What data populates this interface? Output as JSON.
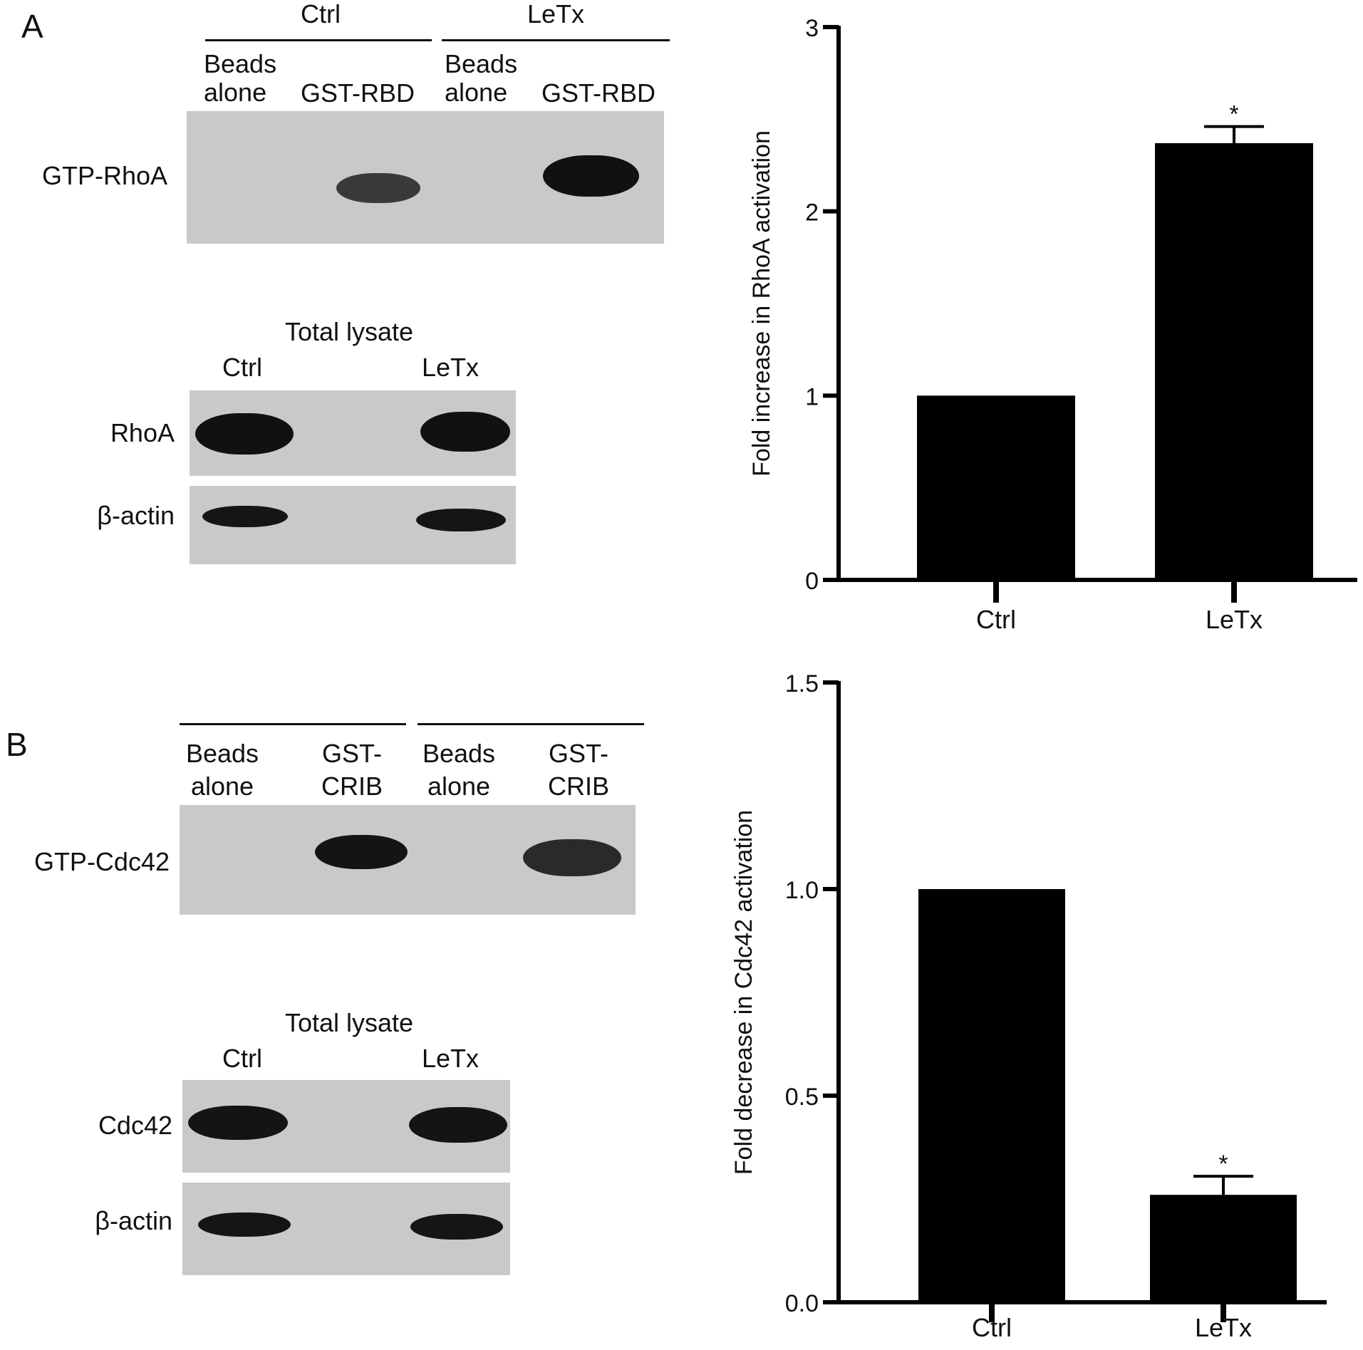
{
  "panel_a": {
    "letter": "A",
    "top_groups": [
      "Ctrl",
      "LeTx"
    ],
    "lanes": [
      {
        "line1": "Beads",
        "line2": "alone"
      },
      {
        "line1": "GST-RBD",
        "line2": ""
      },
      {
        "line1": "Beads",
        "line2": "alone"
      },
      {
        "line1": "GST-RBD",
        "line2": ""
      }
    ],
    "gtp_label": "GTP-RhoA",
    "total_lysate_title": "Total lysate",
    "lysate_groups": [
      "Ctrl",
      "LeTx"
    ],
    "lysate_rows": [
      "RhoA",
      "β-actin"
    ]
  },
  "panel_b": {
    "letter": "B",
    "lanes": [
      {
        "line1": "Beads",
        "line2": "alone"
      },
      {
        "line1": "GST-",
        "line2": "CRIB"
      },
      {
        "line1": "Beads",
        "line2": "alone"
      },
      {
        "line1": "GST-",
        "line2": "CRIB"
      }
    ],
    "gtp_label": "GTP-Cdc42",
    "total_lysate_title": "Total lysate",
    "lysate_groups": [
      "Ctrl",
      "LeTx"
    ],
    "lysate_rows": [
      "Cdc42",
      "β-actin"
    ]
  },
  "chart_data": [
    {
      "type": "bar",
      "categories": [
        "Ctrl",
        "LeTx"
      ],
      "values": [
        1.0,
        2.37
      ],
      "errors": [
        0,
        0.09
      ],
      "significance": [
        "",
        "*"
      ],
      "ylabel": "Fold increase in RhoA activation",
      "ylim": [
        0,
        3
      ],
      "yticks": [
        "0",
        "1",
        "2",
        "3"
      ],
      "grid": false
    },
    {
      "type": "bar",
      "categories": [
        "Ctrl",
        "LeTx"
      ],
      "values": [
        1.0,
        0.26
      ],
      "errors": [
        0,
        0.045
      ],
      "significance": [
        "",
        "*"
      ],
      "ylabel": "Fold decrease in Cdc42 activation",
      "ylim": [
        0,
        1.5
      ],
      "yticks": [
        "0.0",
        "0.5",
        "1.0",
        "1.5"
      ],
      "grid": false
    }
  ],
  "colors": {
    "bar": "#000000",
    "axis": "#000000",
    "blot_background": "#c9c9c9",
    "band": "#1a1a1a"
  }
}
